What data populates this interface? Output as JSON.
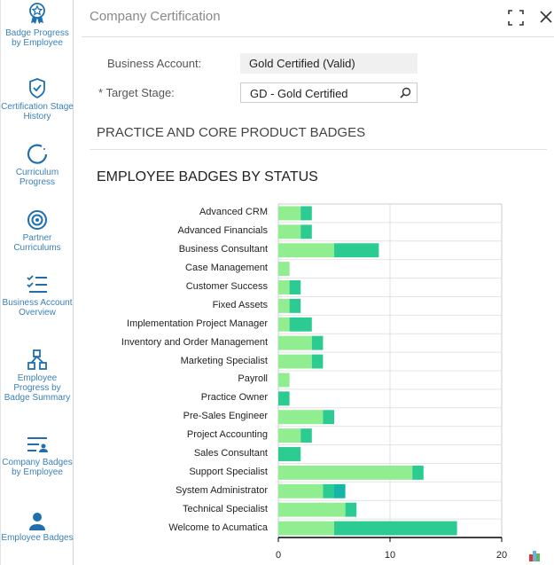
{
  "sidebar": {
    "items": [
      {
        "label": "Badge Progress by Employee",
        "icon": "badge-star-icon"
      },
      {
        "label": "Certification Stage History",
        "icon": "shield-check-icon"
      },
      {
        "label": "Curriculum Progress",
        "icon": "progress-circle-icon"
      },
      {
        "label": "Partner Curriculums",
        "icon": "target-icon"
      },
      {
        "label": "Business Account Overview",
        "icon": "checklist-icon"
      },
      {
        "label": "Employee Progress by Badge Summary",
        "icon": "hierarchy-icon"
      },
      {
        "label": "Company Badges by Employee",
        "icon": "list-person-icon"
      },
      {
        "label": "Employee Badges",
        "icon": "person-icon"
      }
    ]
  },
  "header": {
    "title": "Company Certification",
    "maximize_icon": "maximize-icon",
    "close_icon": "close-icon"
  },
  "form": {
    "business_account_label": "Business Account:",
    "business_account_value": "Gold Certified (Valid)",
    "target_stage_required": "*",
    "target_stage_label": "Target Stage:",
    "target_stage_value": "GD - Gold Certified"
  },
  "sections": {
    "practice": "PRACTICE AND CORE PRODUCT BADGES",
    "employee": "EMPLOYEE BADGES BY STATUS"
  },
  "colors": {
    "series": [
      "#90ee90",
      "#2bcb92",
      "#17b5a8"
    ],
    "accent": "#3a80b8"
  },
  "chart_data": {
    "type": "bar",
    "orientation": "horizontal",
    "stacked": true,
    "title": "EMPLOYEE BADGES BY STATUS",
    "categories": [
      "Advanced CRM",
      "Advanced Financials",
      "Business Consultant",
      "Case Management",
      "Customer Success",
      "Fixed Assets",
      "Implementation Project Manager",
      "Inventory and Order Management",
      "Marketing Specialist",
      "Payroll",
      "Practice Owner",
      "Pre-Sales Engineer",
      "Project Accounting",
      "Sales Consultant",
      "Support Specialist",
      "System Administrator",
      "Technical Specialist",
      "Welcome to Acumatica"
    ],
    "series": [
      {
        "values": [
          2,
          2,
          5,
          1,
          1,
          1,
          1,
          3,
          3,
          1,
          0,
          4,
          2,
          0,
          12,
          4,
          6,
          5
        ]
      },
      {
        "values": [
          1,
          1,
          4,
          0,
          1,
          1,
          2,
          1,
          1,
          0,
          1,
          1,
          1,
          2,
          1,
          1,
          1,
          11
        ]
      },
      {
        "values": [
          0,
          0,
          0,
          0,
          0,
          0,
          0,
          0,
          0,
          0,
          0,
          0,
          0,
          0,
          0,
          1,
          0,
          0
        ]
      }
    ],
    "xlim": [
      0,
      20
    ],
    "xticks": [
      "0",
      "10",
      "20"
    ],
    "grid": true,
    "legend": "none"
  }
}
